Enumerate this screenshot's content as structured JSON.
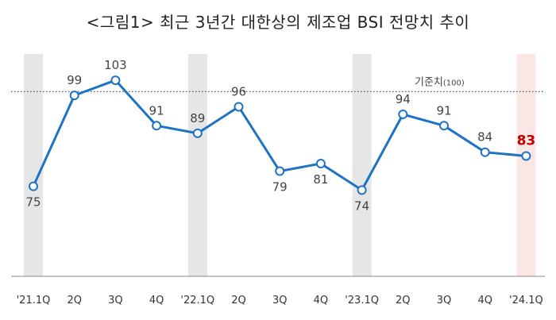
{
  "title": "<그림1> 최근 3년간 대한상의 제조업 BSI 전망치 추이",
  "chart_data": {
    "type": "line",
    "categories": [
      "'21.1Q",
      "2Q",
      "3Q",
      "4Q",
      "'22.1Q",
      "2Q",
      "3Q",
      "4Q",
      "'23.1Q",
      "2Q",
      "3Q",
      "4Q",
      "'24.1Q"
    ],
    "series": [
      {
        "values": [
          75,
          99,
          103,
          91,
          89,
          96,
          79,
          81,
          74,
          94,
          91,
          84,
          83
        ]
      }
    ],
    "reference_line": {
      "label": "기준치",
      "label_suffix": "(100)",
      "value": 100
    },
    "highlighted_quarters": [
      "'21.1Q",
      "'22.1Q",
      "'23.1Q"
    ],
    "emphasized_quarter": "'24.1Q",
    "ylim": [
      55,
      107
    ],
    "colors": {
      "line": "#1f73c4",
      "marker_fill": "#ffffff",
      "band": "#e6e6e6",
      "emphasis_band": "#fbe6e6",
      "emphasis_text": "#c00000",
      "reference_line": "#555555"
    }
  }
}
